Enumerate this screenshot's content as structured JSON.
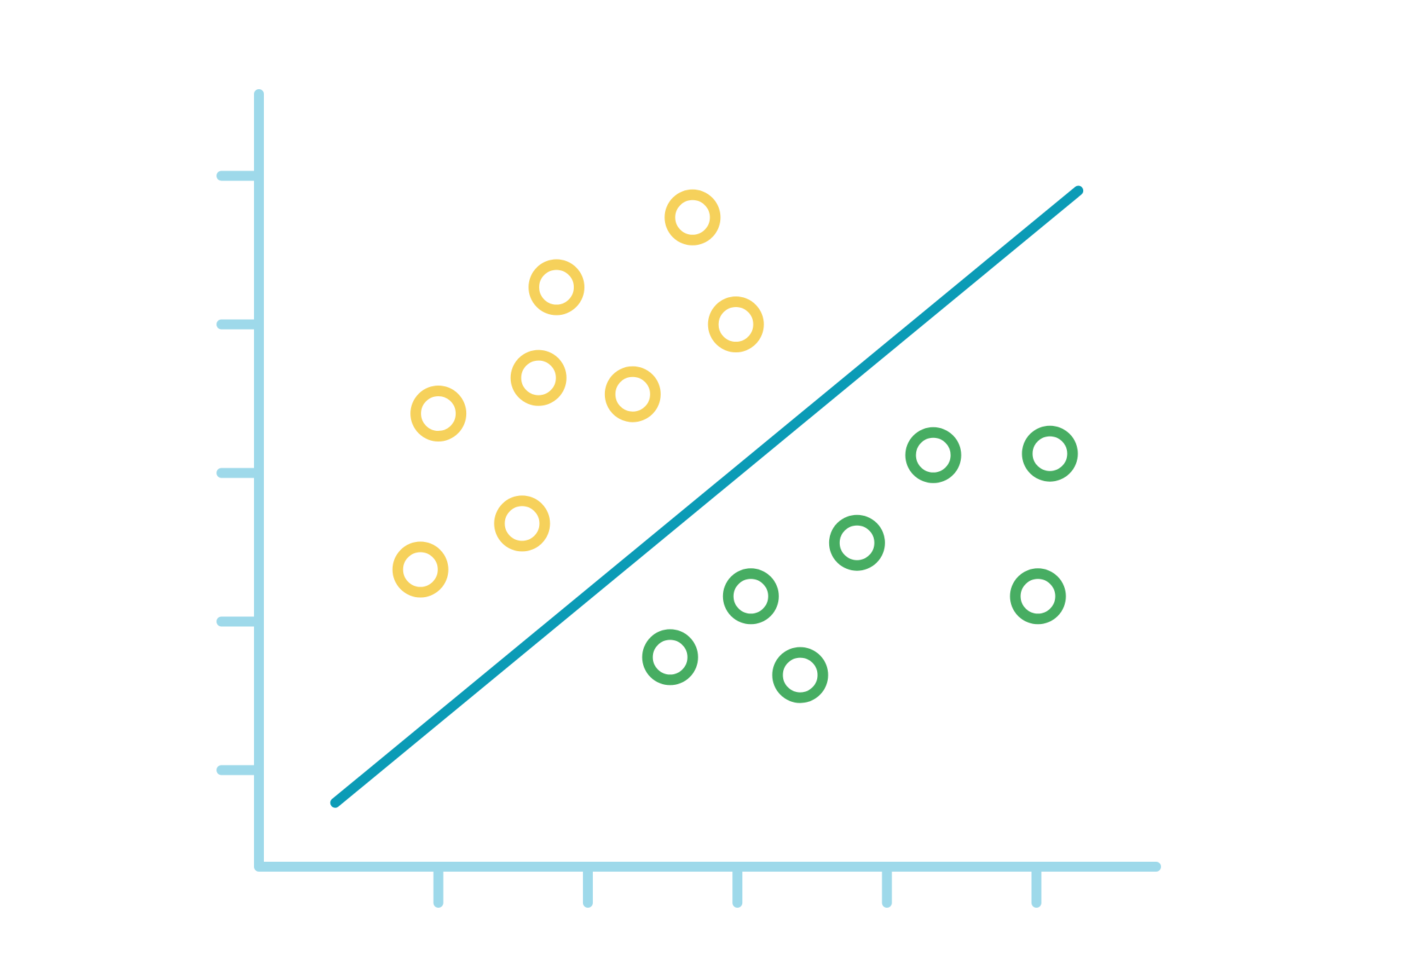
{
  "chart_data": {
    "type": "scatter",
    "title": "",
    "xlabel": "",
    "ylabel": "",
    "xlim": [
      0,
      6
    ],
    "ylim": [
      0,
      5.2
    ],
    "xticks": [
      1.2,
      2.2,
      3.2,
      4.2,
      5.2
    ],
    "yticks": [
      0.65,
      1.65,
      2.65,
      3.65,
      4.65
    ],
    "grid": false,
    "legend": "none",
    "series": [
      {
        "color": "#f6d15b",
        "points": [
          [
            2.9,
            4.37
          ],
          [
            1.99,
            3.9
          ],
          [
            3.19,
            3.65
          ],
          [
            1.87,
            3.29
          ],
          [
            2.5,
            3.18
          ],
          [
            1.2,
            3.05
          ],
          [
            1.76,
            2.31
          ],
          [
            1.08,
            2.0
          ]
        ]
      },
      {
        "color": "#47ad62",
        "points": [
          [
            4.51,
            2.77
          ],
          [
            5.29,
            2.78
          ],
          [
            4.0,
            2.18
          ],
          [
            5.21,
            1.82
          ],
          [
            3.29,
            1.82
          ],
          [
            2.75,
            1.41
          ],
          [
            3.62,
            1.29
          ]
        ]
      }
    ],
    "separator": {
      "color": "#0b9bb6",
      "from": [
        0.51,
        0.43
      ],
      "to": [
        5.48,
        4.55
      ]
    },
    "axis_color": "#9ed9ea"
  }
}
